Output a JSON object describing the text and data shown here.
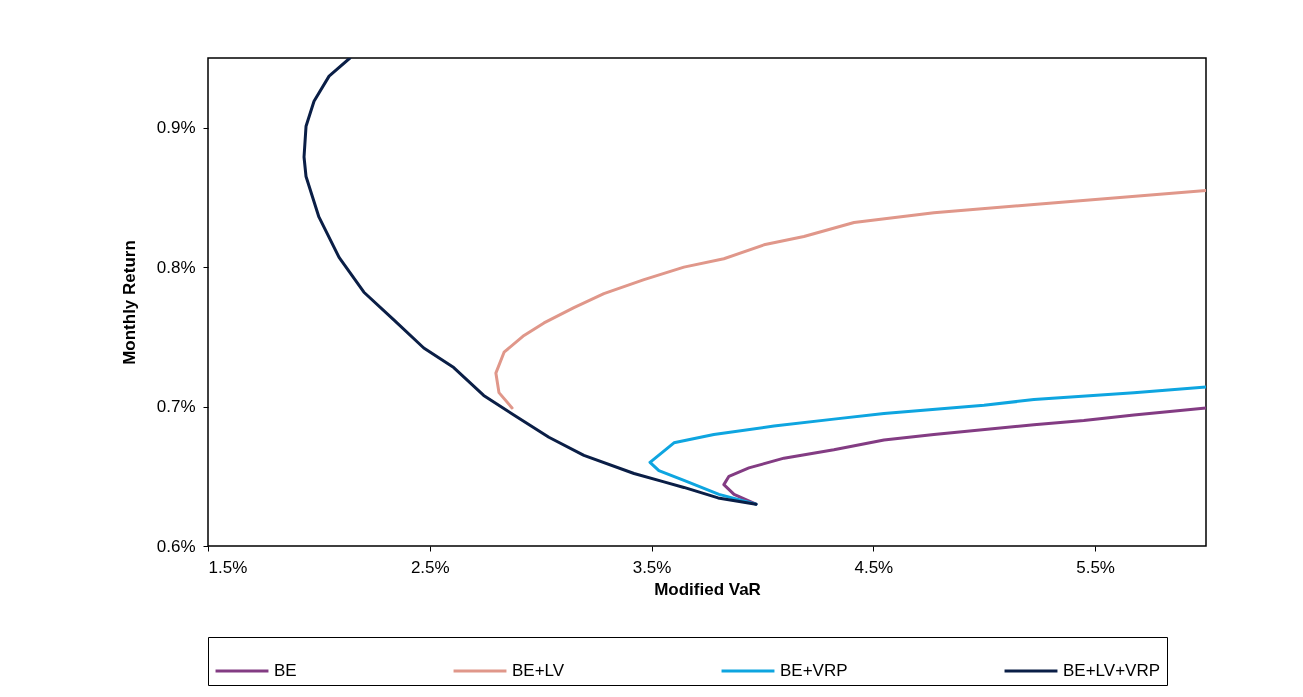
{
  "chart_data": {
    "type": "line",
    "xlabel": "Modified VaR",
    "ylabel": "Monthly Return",
    "xlim": [
      1.5,
      6.0
    ],
    "ylim": [
      0.6,
      0.95
    ],
    "xticks": [
      {
        "value": 1.5,
        "label": "1.5%"
      },
      {
        "value": 2.5,
        "label": "2.5%"
      },
      {
        "value": 3.5,
        "label": "3.5%"
      },
      {
        "value": 4.5,
        "label": "4.5%"
      },
      {
        "value": 5.5,
        "label": "5.5%"
      }
    ],
    "yticks": [
      {
        "value": 0.6,
        "label": "0.6%"
      },
      {
        "value": 0.7,
        "label": "0.7%"
      },
      {
        "value": 0.8,
        "label": "0.8%"
      },
      {
        "value": 0.9,
        "label": "0.9%"
      }
    ],
    "grid": false,
    "legend": "bottom",
    "marker": "none",
    "line_style": "solid",
    "series": [
      {
        "name": "BE",
        "color": "#833c83",
        "x": [
          3.971,
          3.872,
          3.826,
          3.849,
          3.939,
          4.097,
          4.322,
          4.548,
          4.773,
          5.224,
          5.449,
          5.675,
          6.0
        ],
        "values": [
          0.63,
          0.637,
          0.644,
          0.65,
          0.656,
          0.663,
          0.669,
          0.676,
          0.68,
          0.687,
          0.69,
          0.694,
          0.699
        ]
      },
      {
        "name": "BE+LV",
        "color": "#e0978a",
        "x": [
          2.871,
          2.812,
          2.798,
          2.835,
          2.925,
          3.015,
          3.15,
          3.285,
          3.466,
          3.646,
          3.826,
          4.007,
          4.187,
          4.413,
          4.773,
          5.224,
          6.0
        ],
        "values": [
          0.699,
          0.71,
          0.724,
          0.739,
          0.751,
          0.76,
          0.771,
          0.781,
          0.791,
          0.8,
          0.806,
          0.816,
          0.822,
          0.832,
          0.839,
          0.845,
          0.855
        ]
      },
      {
        "name": "BE+VRP",
        "color": "#0ea5e0",
        "x": [
          3.971,
          3.804,
          3.646,
          3.533,
          3.493,
          3.601,
          3.781,
          4.052,
          4.322,
          4.548,
          4.999,
          5.224,
          5.675,
          6.0
        ],
        "values": [
          0.63,
          0.637,
          0.647,
          0.654,
          0.66,
          0.674,
          0.68,
          0.686,
          0.691,
          0.695,
          0.701,
          0.705,
          0.71,
          0.714
        ]
      },
      {
        "name": "BE+LV+VRP",
        "color": "#0a1e46",
        "x": [
          3.971,
          3.8,
          3.646,
          3.556,
          3.421,
          3.195,
          3.037,
          2.879,
          2.743,
          2.608,
          2.473,
          2.339,
          2.203,
          2.091,
          2.0,
          1.942,
          1.933,
          1.942,
          1.978,
          2.046,
          2.14
        ],
        "values": [
          0.63,
          0.6345,
          0.642,
          0.646,
          0.652,
          0.665,
          0.678,
          0.694,
          0.708,
          0.728,
          0.742,
          0.762,
          0.782,
          0.807,
          0.836,
          0.865,
          0.879,
          0.901,
          0.919,
          0.937,
          0.95
        ]
      }
    ]
  }
}
